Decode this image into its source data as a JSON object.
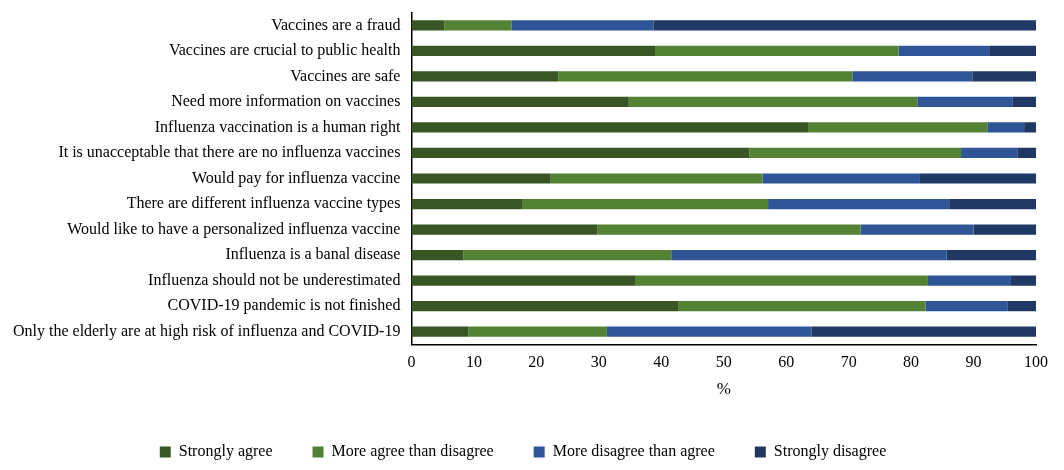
{
  "chart_data": {
    "type": "bar",
    "orientation": "horizontal",
    "stacked": true,
    "xlabel": "%",
    "categories": [
      "Vaccines are a fraud",
      "Vaccines are crucial to public health",
      "Vaccines are safe",
      "Need more information on vaccines",
      "Influenza vaccination is a human right",
      "It is unacceptable that there are no influenza vaccines",
      "Would pay for influenza vaccine",
      "There are different influenza vaccine types",
      "Would like to have a personalized influenza vaccine",
      "Influenza is a banal disease",
      "Influenza should not be underestimated",
      "COVID-19 pandemic is not finished",
      "Only the elderly are at high risk of influenza and COVID-19"
    ],
    "series": [
      {
        "name": "Strongly agree",
        "color": "#375623",
        "values": [
          5.3,
          39.0,
          23.5,
          34.8,
          63.5,
          54.1,
          22.3,
          17.7,
          29.8,
          8.3,
          35.8,
          42.8,
          9.1
        ]
      },
      {
        "name": "More agree than disagree",
        "color": "#548235",
        "values": [
          10.7,
          39.0,
          47.1,
          46.2,
          28.7,
          33.9,
          33.9,
          39.4,
          42.1,
          33.3,
          46.9,
          39.5,
          22.2
        ]
      },
      {
        "name": "More disagree than agree",
        "color": "#2f5597",
        "values": [
          22.8,
          14.5,
          19.2,
          15.2,
          5.9,
          9.0,
          25.1,
          29.0,
          18.1,
          44.1,
          13.3,
          13.2,
          32.8
        ]
      },
      {
        "name": "Strongly disagree",
        "color": "#1f3864",
        "values": [
          61.2,
          7.5,
          10.2,
          3.8,
          1.9,
          3.0,
          18.7,
          13.9,
          10.0,
          14.3,
          4.0,
          4.5,
          35.9
        ]
      }
    ],
    "xlim": [
      0,
      100
    ],
    "xticks": [
      0,
      10,
      20,
      30,
      40,
      50,
      60,
      70,
      80,
      90,
      100
    ],
    "grid": false,
    "legend": "bottom"
  }
}
